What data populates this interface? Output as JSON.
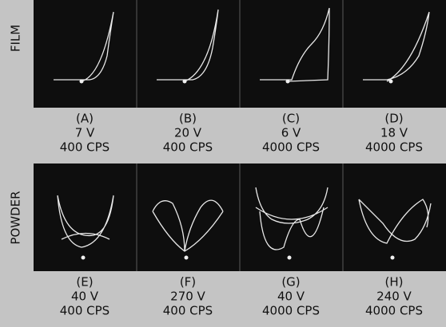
{
  "rows": [
    {
      "label": "FILM",
      "panels": [
        {
          "letter": "(A)",
          "voltage": "7 V",
          "frequency": "400 CPS"
        },
        {
          "letter": "(B)",
          "voltage": "20 V",
          "frequency": "400 CPS"
        },
        {
          "letter": "(C)",
          "voltage": "6 V",
          "frequency": "4000 CPS"
        },
        {
          "letter": "(D)",
          "voltage": "18 V",
          "frequency": "4000 CPS"
        }
      ]
    },
    {
      "label": "POWDER",
      "panels": [
        {
          "letter": "(E)",
          "voltage": "40 V",
          "frequency": "400 CPS"
        },
        {
          "letter": "(F)",
          "voltage": "270 V",
          "frequency": "400 CPS"
        },
        {
          "letter": "(G)",
          "voltage": "40 V",
          "frequency": "4000 CPS"
        },
        {
          "letter": "(H)",
          "voltage": "240 V",
          "frequency": "4000 CPS"
        }
      ]
    }
  ]
}
